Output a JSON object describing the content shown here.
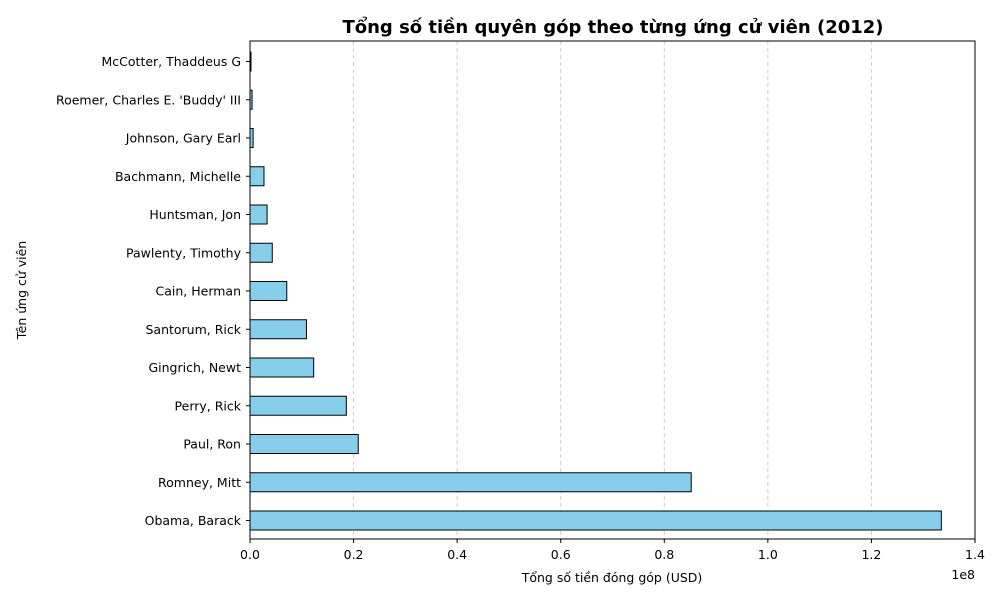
{
  "chart_data": {
    "type": "bar",
    "orientation": "horizontal",
    "title": "Tổng số tiền quyên góp theo từng ứng cử viên (2012)",
    "xlabel": "Tổng số tiền đóng góp (USD)",
    "ylabel": "Tên ứng cử viên",
    "x_scale_label": "1e8",
    "categories": [
      "Obama, Barack",
      "Romney, Mitt",
      "Paul, Ron",
      "Perry, Rick",
      "Gingrich, Newt",
      "Santorum, Rick",
      "Cain, Herman",
      "Pawlenty, Timothy",
      "Huntsman, Jon",
      "Bachmann, Michelle",
      "Johnson, Gary Earl",
      "Roemer, Charles E. 'Buddy' III",
      "McCotter, Thaddeus G"
    ],
    "values": [
      133500000,
      85200000,
      20900000,
      18600000,
      12300000,
      10900000,
      7100000,
      4300000,
      3300000,
      2700000,
      600000,
      400000,
      100000
    ],
    "xlim": [
      0,
      140000000
    ],
    "xticks": [
      0,
      20000000,
      40000000,
      60000000,
      80000000,
      100000000,
      120000000,
      140000000
    ],
    "xtick_labels": [
      "0.0",
      "0.2",
      "0.4",
      "0.6",
      "0.8",
      "1.0",
      "1.2",
      "1.4"
    ],
    "grid": "x-dashed",
    "legend": "none",
    "colors": {
      "bar_fill": "#87CEEB",
      "bar_edge": "#000000",
      "grid": "#cccccc",
      "axis": "#000000"
    }
  }
}
